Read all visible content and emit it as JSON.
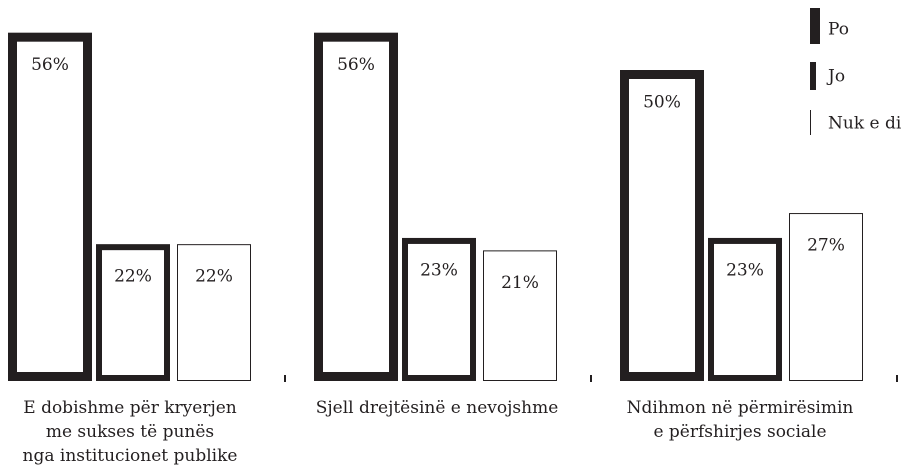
{
  "chart_data": {
    "type": "bar",
    "categories": [
      "E dobishme për kryerjen\nme sukses të punës\nnga institucionet publike",
      "Sjell drejtësinë e nevojshme",
      "Ndihmon në përmirësimin\ne përfshirjes sociale"
    ],
    "series": [
      {
        "name": "Po",
        "color": "#231f20",
        "values": [
          56,
          56,
          50
        ],
        "value_labels": [
          "56%",
          "56%",
          "50%"
        ]
      },
      {
        "name": "Jo",
        "color": "#231f20",
        "values": [
          22,
          23,
          23
        ],
        "value_labels": [
          "22%",
          "23%",
          "23%"
        ]
      },
      {
        "name": "Nuk e di",
        "color": "#231f20",
        "values": [
          22,
          21,
          27
        ],
        "value_labels": [
          "22%",
          "21%",
          "27%"
        ]
      }
    ]
  }
}
